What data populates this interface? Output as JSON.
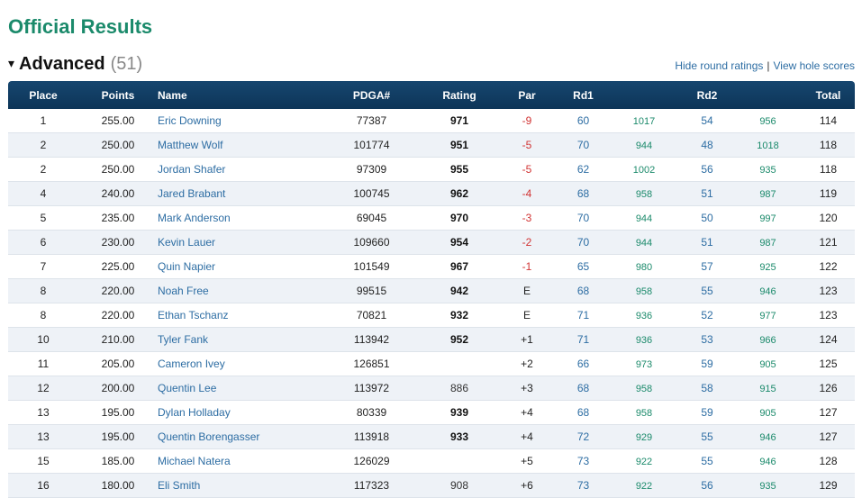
{
  "page": {
    "title": "Official Results"
  },
  "division": {
    "toggle_symbol": "▾",
    "name": "Advanced",
    "count": "(51)",
    "links": {
      "hide_round_ratings": "Hide round ratings",
      "separator": "|",
      "view_hole_scores": "View hole scores"
    }
  },
  "table": {
    "headers": {
      "place": "Place",
      "points": "Points",
      "name": "Name",
      "pdga": "PDGA#",
      "rating": "Rating",
      "par": "Par",
      "rd1": "Rd1",
      "rd2": "Rd2",
      "total": "Total"
    },
    "rows": [
      {
        "place": "1",
        "points": "255.00",
        "name": "Eric Downing",
        "pdga": "77387",
        "rating": "971",
        "par": "-9",
        "rd1": "60",
        "rd1_rating": "1017",
        "rd2": "54",
        "rd2_rating": "956",
        "total": "114"
      },
      {
        "place": "2",
        "points": "250.00",
        "name": "Matthew Wolf",
        "pdga": "101774",
        "rating": "951",
        "par": "-5",
        "rd1": "70",
        "rd1_rating": "944",
        "rd2": "48",
        "rd2_rating": "1018",
        "total": "118"
      },
      {
        "place": "2",
        "points": "250.00",
        "name": "Jordan Shafer",
        "pdga": "97309",
        "rating": "955",
        "par": "-5",
        "rd1": "62",
        "rd1_rating": "1002",
        "rd2": "56",
        "rd2_rating": "935",
        "total": "118"
      },
      {
        "place": "4",
        "points": "240.00",
        "name": "Jared Brabant",
        "pdga": "100745",
        "rating": "962",
        "par": "-4",
        "rd1": "68",
        "rd1_rating": "958",
        "rd2": "51",
        "rd2_rating": "987",
        "total": "119"
      },
      {
        "place": "5",
        "points": "235.00",
        "name": "Mark Anderson",
        "pdga": "69045",
        "rating": "970",
        "par": "-3",
        "rd1": "70",
        "rd1_rating": "944",
        "rd2": "50",
        "rd2_rating": "997",
        "total": "120"
      },
      {
        "place": "6",
        "points": "230.00",
        "name": "Kevin Lauer",
        "pdga": "109660",
        "rating": "954",
        "par": "-2",
        "rd1": "70",
        "rd1_rating": "944",
        "rd2": "51",
        "rd2_rating": "987",
        "total": "121"
      },
      {
        "place": "7",
        "points": "225.00",
        "name": "Quin Napier",
        "pdga": "101549",
        "rating": "967",
        "par": "-1",
        "rd1": "65",
        "rd1_rating": "980",
        "rd2": "57",
        "rd2_rating": "925",
        "total": "122"
      },
      {
        "place": "8",
        "points": "220.00",
        "name": "Noah Free",
        "pdga": "99515",
        "rating": "942",
        "par": "E",
        "rd1": "68",
        "rd1_rating": "958",
        "rd2": "55",
        "rd2_rating": "946",
        "total": "123"
      },
      {
        "place": "8",
        "points": "220.00",
        "name": "Ethan Tschanz",
        "pdga": "70821",
        "rating": "932",
        "par": "E",
        "rd1": "71",
        "rd1_rating": "936",
        "rd2": "52",
        "rd2_rating": "977",
        "total": "123"
      },
      {
        "place": "10",
        "points": "210.00",
        "name": "Tyler Fank",
        "pdga": "113942",
        "rating": "952",
        "par": "+1",
        "rd1": "71",
        "rd1_rating": "936",
        "rd2": "53",
        "rd2_rating": "966",
        "total": "124"
      },
      {
        "place": "11",
        "points": "205.00",
        "name": "Cameron Ivey",
        "pdga": "126851",
        "rating": "",
        "par": "+2",
        "rd1": "66",
        "rd1_rating": "973",
        "rd2": "59",
        "rd2_rating": "905",
        "total": "125"
      },
      {
        "place": "12",
        "points": "200.00",
        "name": "Quentin Lee",
        "pdga": "113972",
        "rating": "886",
        "par": "+3",
        "rd1": "68",
        "rd1_rating": "958",
        "rd2": "58",
        "rd2_rating": "915",
        "total": "126"
      },
      {
        "place": "13",
        "points": "195.00",
        "name": "Dylan Holladay",
        "pdga": "80339",
        "rating": "939",
        "par": "+4",
        "rd1": "68",
        "rd1_rating": "958",
        "rd2": "59",
        "rd2_rating": "905",
        "total": "127"
      },
      {
        "place": "13",
        "points": "195.00",
        "name": "Quentin Borengasser",
        "pdga": "113918",
        "rating": "933",
        "par": "+4",
        "rd1": "72",
        "rd1_rating": "929",
        "rd2": "55",
        "rd2_rating": "946",
        "total": "127"
      },
      {
        "place": "15",
        "points": "185.00",
        "name": "Michael Natera",
        "pdga": "126029",
        "rating": "",
        "par": "+5",
        "rd1": "73",
        "rd1_rating": "922",
        "rd2": "55",
        "rd2_rating": "946",
        "total": "128"
      },
      {
        "place": "16",
        "points": "180.00",
        "name": "Eli Smith",
        "pdga": "117323",
        "rating": "908",
        "par": "+6",
        "rd1": "73",
        "rd1_rating": "922",
        "rd2": "56",
        "rd2_rating": "935",
        "total": "129"
      }
    ]
  }
}
